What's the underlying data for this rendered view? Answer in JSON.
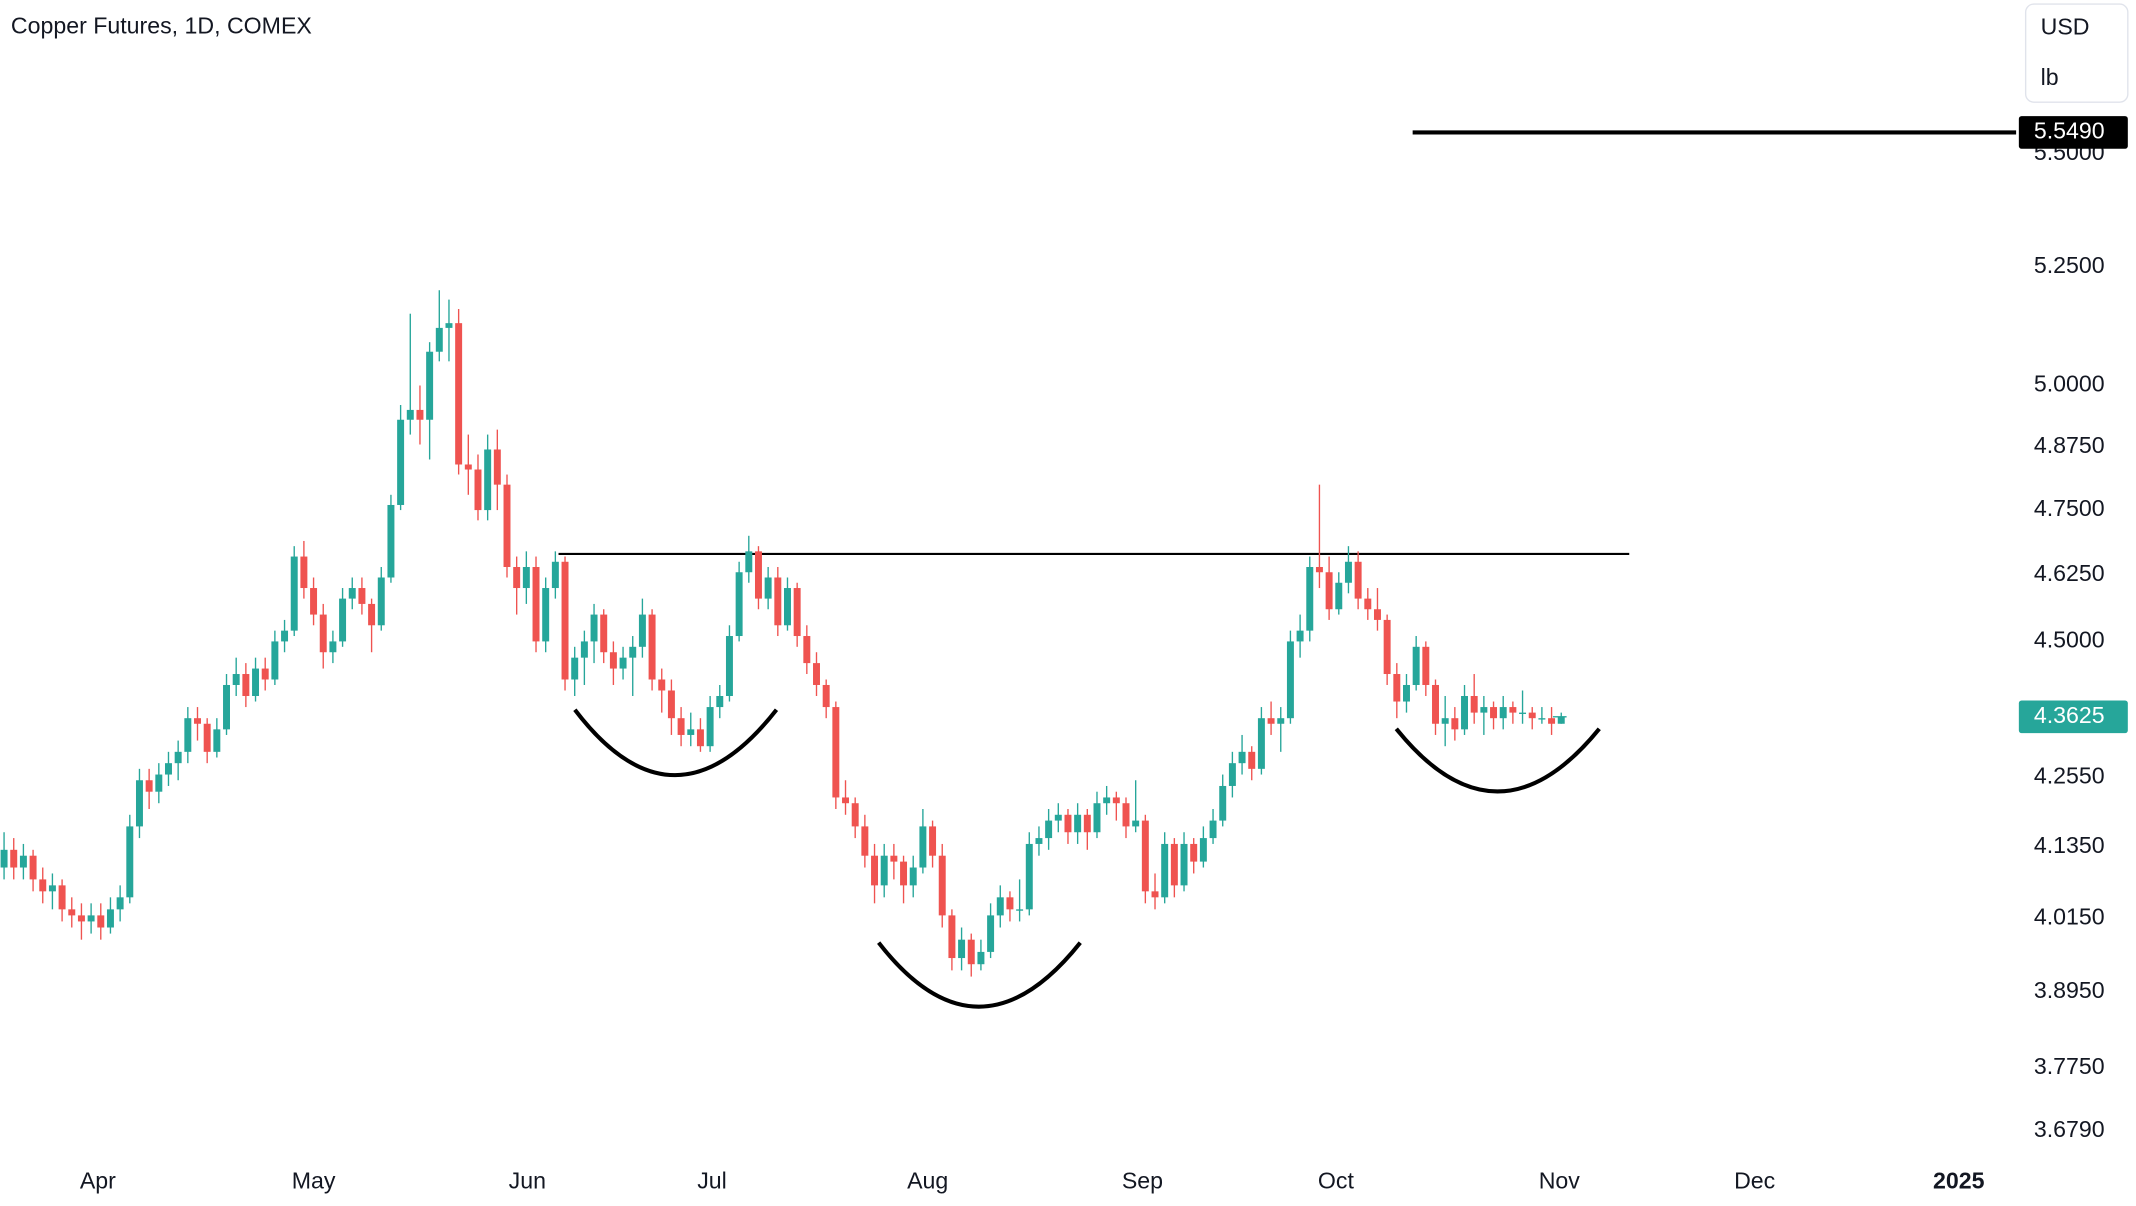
{
  "chart_data": {
    "type": "candlestick",
    "title": "Copper Futures, 1D, COMEX",
    "currency": "USD",
    "unit": "lb",
    "log_scale": true,
    "grid": false,
    "up_color": "#26a69a",
    "down_color": "#ef5350",
    "ylim": [
      3.638,
      5.86
    ],
    "yticks": [
      {
        "value": 5.5,
        "label": "5.5000"
      },
      {
        "value": 5.25,
        "label": "5.2500"
      },
      {
        "value": 5.0,
        "label": "5.0000"
      },
      {
        "value": 4.875,
        "label": "4.8750"
      },
      {
        "value": 4.75,
        "label": "4.7500"
      },
      {
        "value": 4.625,
        "label": "4.6250"
      },
      {
        "value": 4.5,
        "label": "4.5000"
      },
      {
        "value": 4.255,
        "label": "4.2550"
      },
      {
        "value": 4.135,
        "label": "4.1350"
      },
      {
        "value": 4.015,
        "label": "4.0150"
      },
      {
        "value": 3.895,
        "label": "3.8950"
      },
      {
        "value": 3.775,
        "label": "3.7750"
      },
      {
        "value": 3.679,
        "label": "3.6790"
      }
    ],
    "xlim": [
      -0.42,
      207.75
    ],
    "xticks": [
      {
        "value": 9.7,
        "label": "Apr"
      },
      {
        "value": 32.0,
        "label": "May"
      },
      {
        "value": 54.1,
        "label": "Jun"
      },
      {
        "value": 73.2,
        "label": "Jul"
      },
      {
        "value": 95.5,
        "label": "Aug"
      },
      {
        "value": 117.7,
        "label": "Sep"
      },
      {
        "value": 137.7,
        "label": "Oct"
      },
      {
        "value": 160.8,
        "label": "Nov"
      },
      {
        "value": 181.0,
        "label": "Dec"
      },
      {
        "value": 202.1,
        "label": "2025"
      }
    ],
    "neckline": 4.665,
    "price_line": {
      "value": 5.549,
      "label": "5.5490",
      "color": "#000000"
    },
    "last_price": {
      "value": 4.3625,
      "label": "4.3625",
      "color": "#26a69a"
    },
    "candles": [
      [
        4.1,
        4.16,
        4.08,
        4.13
      ],
      [
        4.13,
        4.15,
        4.08,
        4.1
      ],
      [
        4.1,
        4.14,
        4.08,
        4.12
      ],
      [
        4.12,
        4.13,
        4.06,
        4.08
      ],
      [
        4.08,
        4.1,
        4.04,
        4.06
      ],
      [
        4.06,
        4.09,
        4.03,
        4.07
      ],
      [
        4.07,
        4.08,
        4.01,
        4.03
      ],
      [
        4.03,
        4.05,
        4.0,
        4.02
      ],
      [
        4.02,
        4.04,
        3.98,
        4.01
      ],
      [
        4.01,
        4.04,
        3.99,
        4.02
      ],
      [
        4.02,
        4.04,
        3.98,
        4.0
      ],
      [
        4.0,
        4.05,
        3.99,
        4.03
      ],
      [
        4.03,
        4.07,
        4.01,
        4.05
      ],
      [
        4.05,
        4.19,
        4.04,
        4.17
      ],
      [
        4.17,
        4.27,
        4.15,
        4.25
      ],
      [
        4.25,
        4.27,
        4.2,
        4.23
      ],
      [
        4.23,
        4.28,
        4.21,
        4.26
      ],
      [
        4.26,
        4.3,
        4.24,
        4.28
      ],
      [
        4.28,
        4.32,
        4.25,
        4.3
      ],
      [
        4.3,
        4.38,
        4.28,
        4.36
      ],
      [
        4.36,
        4.38,
        4.32,
        4.35
      ],
      [
        4.35,
        4.36,
        4.28,
        4.3
      ],
      [
        4.3,
        4.36,
        4.29,
        4.34
      ],
      [
        4.34,
        4.44,
        4.33,
        4.42
      ],
      [
        4.42,
        4.47,
        4.4,
        4.44
      ],
      [
        4.44,
        4.46,
        4.38,
        4.4
      ],
      [
        4.4,
        4.47,
        4.39,
        4.45
      ],
      [
        4.45,
        4.47,
        4.41,
        4.43
      ],
      [
        4.43,
        4.52,
        4.42,
        4.5
      ],
      [
        4.5,
        4.54,
        4.48,
        4.52
      ],
      [
        4.52,
        4.68,
        4.51,
        4.66
      ],
      [
        4.66,
        4.69,
        4.58,
        4.6
      ],
      [
        4.6,
        4.62,
        4.53,
        4.55
      ],
      [
        4.55,
        4.57,
        4.45,
        4.48
      ],
      [
        4.48,
        4.52,
        4.46,
        4.5
      ],
      [
        4.5,
        4.6,
        4.49,
        4.58
      ],
      [
        4.58,
        4.62,
        4.56,
        4.6
      ],
      [
        4.6,
        4.62,
        4.55,
        4.57
      ],
      [
        4.57,
        4.58,
        4.48,
        4.53
      ],
      [
        4.53,
        4.64,
        4.52,
        4.62
      ],
      [
        4.62,
        4.78,
        4.61,
        4.76
      ],
      [
        4.76,
        4.96,
        4.75,
        4.93
      ],
      [
        4.93,
        5.15,
        4.9,
        4.95
      ],
      [
        4.95,
        5.0,
        4.88,
        4.93
      ],
      [
        4.93,
        5.09,
        4.85,
        5.07
      ],
      [
        5.07,
        5.2,
        5.05,
        5.12
      ],
      [
        5.12,
        5.18,
        5.05,
        5.13
      ],
      [
        5.13,
        5.16,
        4.82,
        4.84
      ],
      [
        4.84,
        4.9,
        4.78,
        4.83
      ],
      [
        4.83,
        4.86,
        4.73,
        4.75
      ],
      [
        4.75,
        4.9,
        4.73,
        4.87
      ],
      [
        4.87,
        4.91,
        4.75,
        4.8
      ],
      [
        4.8,
        4.82,
        4.62,
        4.64
      ],
      [
        4.64,
        4.66,
        4.55,
        4.6
      ],
      [
        4.6,
        4.67,
        4.57,
        4.64
      ],
      [
        4.64,
        4.66,
        4.48,
        4.5
      ],
      [
        4.5,
        4.62,
        4.48,
        4.6
      ],
      [
        4.6,
        4.67,
        4.58,
        4.65
      ],
      [
        4.65,
        4.66,
        4.41,
        4.43
      ],
      [
        4.43,
        4.49,
        4.4,
        4.47
      ],
      [
        4.47,
        4.52,
        4.42,
        4.5
      ],
      [
        4.5,
        4.57,
        4.46,
        4.55
      ],
      [
        4.55,
        4.56,
        4.46,
        4.48
      ],
      [
        4.48,
        4.5,
        4.42,
        4.45
      ],
      [
        4.45,
        4.49,
        4.43,
        4.47
      ],
      [
        4.47,
        4.51,
        4.4,
        4.49
      ],
      [
        4.49,
        4.58,
        4.47,
        4.55
      ],
      [
        4.55,
        4.56,
        4.41,
        4.43
      ],
      [
        4.43,
        4.45,
        4.37,
        4.41
      ],
      [
        4.41,
        4.43,
        4.33,
        4.36
      ],
      [
        4.36,
        4.38,
        4.31,
        4.33
      ],
      [
        4.33,
        4.37,
        4.31,
        4.34
      ],
      [
        4.34,
        4.36,
        4.3,
        4.31
      ],
      [
        4.31,
        4.4,
        4.3,
        4.38
      ],
      [
        4.38,
        4.42,
        4.36,
        4.4
      ],
      [
        4.4,
        4.53,
        4.39,
        4.51
      ],
      [
        4.51,
        4.65,
        4.5,
        4.63
      ],
      [
        4.63,
        4.7,
        4.61,
        4.67
      ],
      [
        4.67,
        4.68,
        4.56,
        4.58
      ],
      [
        4.58,
        4.64,
        4.56,
        4.62
      ],
      [
        4.62,
        4.64,
        4.51,
        4.53
      ],
      [
        4.53,
        4.62,
        4.52,
        4.6
      ],
      [
        4.6,
        4.61,
        4.49,
        4.51
      ],
      [
        4.51,
        4.53,
        4.44,
        4.46
      ],
      [
        4.46,
        4.48,
        4.4,
        4.42
      ],
      [
        4.42,
        4.43,
        4.36,
        4.38
      ],
      [
        4.38,
        4.39,
        4.2,
        4.22
      ],
      [
        4.22,
        4.25,
        4.19,
        4.21
      ],
      [
        4.21,
        4.22,
        4.15,
        4.17
      ],
      [
        4.17,
        4.19,
        4.1,
        4.12
      ],
      [
        4.12,
        4.14,
        4.04,
        4.07
      ],
      [
        4.07,
        4.14,
        4.05,
        4.12
      ],
      [
        4.12,
        4.14,
        4.08,
        4.11
      ],
      [
        4.11,
        4.12,
        4.04,
        4.07
      ],
      [
        4.07,
        4.12,
        4.05,
        4.1
      ],
      [
        4.1,
        4.2,
        4.09,
        4.17
      ],
      [
        4.17,
        4.18,
        4.1,
        4.12
      ],
      [
        4.12,
        4.14,
        4.0,
        4.02
      ],
      [
        4.02,
        4.03,
        3.93,
        3.95
      ],
      [
        3.95,
        4.0,
        3.93,
        3.98
      ],
      [
        3.98,
        3.99,
        3.92,
        3.94
      ],
      [
        3.94,
        3.98,
        3.93,
        3.96
      ],
      [
        3.96,
        4.04,
        3.95,
        4.02
      ],
      [
        4.02,
        4.07,
        4.0,
        4.05
      ],
      [
        4.05,
        4.06,
        4.01,
        4.03
      ],
      [
        4.03,
        4.08,
        4.01,
        4.03
      ],
      [
        4.03,
        4.16,
        4.02,
        4.14
      ],
      [
        4.14,
        4.17,
        4.12,
        4.15
      ],
      [
        4.15,
        4.2,
        4.13,
        4.18
      ],
      [
        4.18,
        4.21,
        4.16,
        4.19
      ],
      [
        4.19,
        4.2,
        4.14,
        4.16
      ],
      [
        4.16,
        4.21,
        4.14,
        4.19
      ],
      [
        4.19,
        4.2,
        4.13,
        4.16
      ],
      [
        4.16,
        4.23,
        4.15,
        4.21
      ],
      [
        4.21,
        4.24,
        4.19,
        4.22
      ],
      [
        4.22,
        4.23,
        4.18,
        4.21
      ],
      [
        4.21,
        4.22,
        4.15,
        4.17
      ],
      [
        4.17,
        4.25,
        4.16,
        4.18
      ],
      [
        4.18,
        4.19,
        4.04,
        4.06
      ],
      [
        4.06,
        4.09,
        4.03,
        4.05
      ],
      [
        4.05,
        4.16,
        4.04,
        4.14
      ],
      [
        4.14,
        4.15,
        4.05,
        4.07
      ],
      [
        4.07,
        4.16,
        4.06,
        4.14
      ],
      [
        4.14,
        4.15,
        4.09,
        4.11
      ],
      [
        4.11,
        4.17,
        4.1,
        4.15
      ],
      [
        4.15,
        4.2,
        4.14,
        4.18
      ],
      [
        4.18,
        4.26,
        4.17,
        4.24
      ],
      [
        4.24,
        4.3,
        4.22,
        4.28
      ],
      [
        4.28,
        4.33,
        4.26,
        4.3
      ],
      [
        4.3,
        4.31,
        4.25,
        4.27
      ],
      [
        4.27,
        4.38,
        4.26,
        4.36
      ],
      [
        4.36,
        4.39,
        4.33,
        4.35
      ],
      [
        4.35,
        4.38,
        4.3,
        4.36
      ],
      [
        4.36,
        4.52,
        4.35,
        4.5
      ],
      [
        4.5,
        4.55,
        4.47,
        4.52
      ],
      [
        4.52,
        4.66,
        4.5,
        4.64
      ],
      [
        4.64,
        4.8,
        4.6,
        4.63
      ],
      [
        4.63,
        4.66,
        4.54,
        4.56
      ],
      [
        4.56,
        4.63,
        4.55,
        4.61
      ],
      [
        4.61,
        4.68,
        4.59,
        4.65
      ],
      [
        4.65,
        4.67,
        4.56,
        4.58
      ],
      [
        4.58,
        4.6,
        4.54,
        4.56
      ],
      [
        4.56,
        4.6,
        4.52,
        4.54
      ],
      [
        4.54,
        4.55,
        4.42,
        4.44
      ],
      [
        4.44,
        4.46,
        4.36,
        4.39
      ],
      [
        4.39,
        4.44,
        4.37,
        4.42
      ],
      [
        4.42,
        4.51,
        4.41,
        4.49
      ],
      [
        4.49,
        4.5,
        4.4,
        4.42
      ],
      [
        4.42,
        4.43,
        4.33,
        4.35
      ],
      [
        4.35,
        4.4,
        4.31,
        4.36
      ],
      [
        4.36,
        4.38,
        4.32,
        4.34
      ],
      [
        4.34,
        4.42,
        4.33,
        4.4
      ],
      [
        4.4,
        4.44,
        4.35,
        4.37
      ],
      [
        4.37,
        4.4,
        4.33,
        4.38
      ],
      [
        4.38,
        4.39,
        4.34,
        4.36
      ],
      [
        4.36,
        4.4,
        4.34,
        4.38
      ],
      [
        4.38,
        4.39,
        4.35,
        4.37
      ],
      [
        4.37,
        4.41,
        4.35,
        4.37
      ],
      [
        4.37,
        4.38,
        4.34,
        4.36
      ],
      [
        4.36,
        4.38,
        4.35,
        4.36
      ],
      [
        4.36,
        4.38,
        4.33,
        4.35
      ],
      [
        4.35,
        4.37,
        4.35,
        4.3625
      ]
    ]
  }
}
